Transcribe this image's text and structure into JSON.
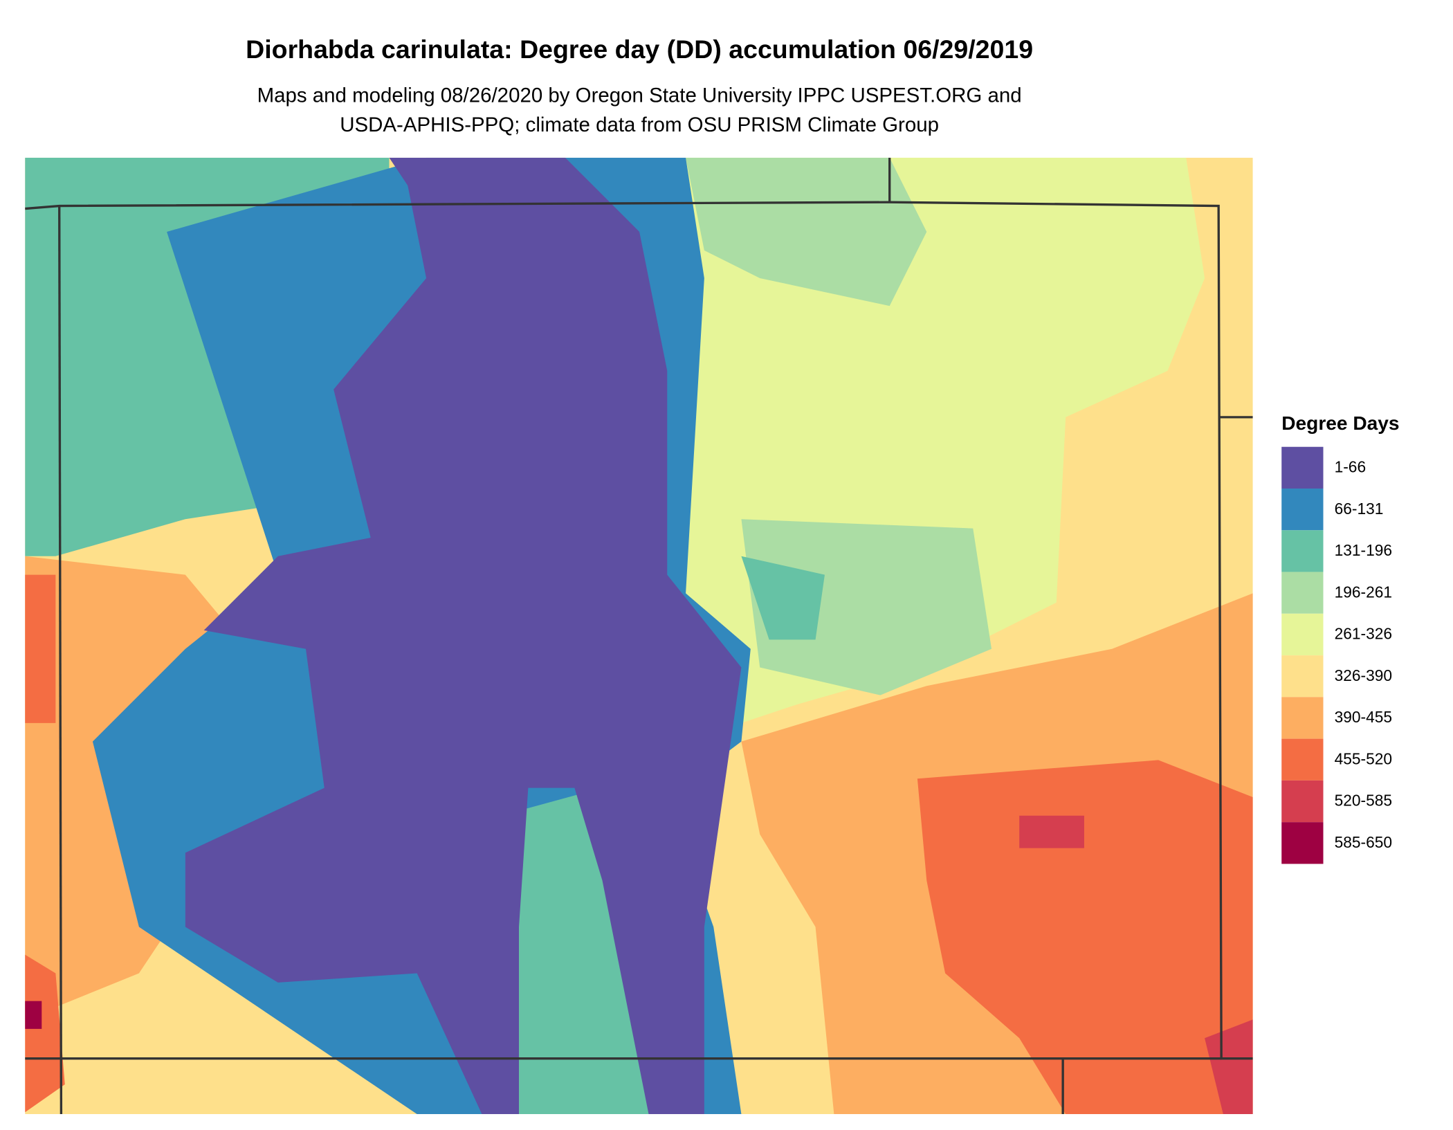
{
  "title": "Diorhabda carinulata: Degree day (DD) accumulation 06/29/2019",
  "subtitle": [
    "Maps and modeling 08/26/2020 by Oregon State University IPPC USPEST.ORG and",
    "USDA-APHIS-PPQ; climate data from OSU PRISM Climate Group"
  ],
  "legend": {
    "title": "Degree Days",
    "items": [
      {
        "label": "1-66",
        "color": "#5e4fa2"
      },
      {
        "label": "66-131",
        "color": "#3288bd"
      },
      {
        "label": "131-196",
        "color": "#66c2a5"
      },
      {
        "label": "196-261",
        "color": "#abdda4"
      },
      {
        "label": "261-326",
        "color": "#e6f598"
      },
      {
        "label": "326-390",
        "color": "#fee08b"
      },
      {
        "label": "390-455",
        "color": "#fdae61"
      },
      {
        "label": "455-520",
        "color": "#f46d43"
      },
      {
        "label": "520-585",
        "color": "#d53e4f"
      },
      {
        "label": "585-650",
        "color": "#9e0142"
      }
    ]
  }
}
